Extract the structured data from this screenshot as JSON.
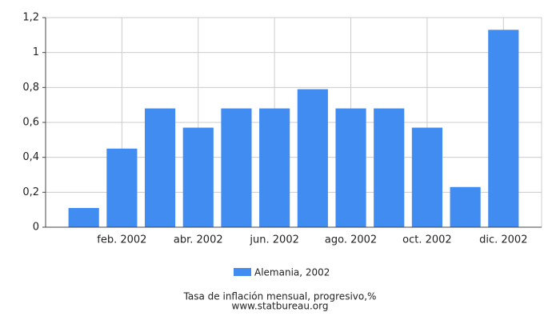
{
  "chart_data": {
    "type": "bar",
    "categories": [
      null,
      "feb. 2002",
      null,
      "abr. 2002",
      null,
      "jun. 2002",
      null,
      "ago. 2002",
      null,
      "oct. 2002",
      null,
      "dic. 2002"
    ],
    "series": [
      {
        "name": "Alemania, 2002",
        "color": "#418cf0",
        "values": [
          0.11,
          0.45,
          0.68,
          0.57,
          0.68,
          0.68,
          0.79,
          0.68,
          0.68,
          0.57,
          0.23,
          1.13
        ]
      }
    ],
    "ylim": [
      0,
      1.2
    ],
    "yticks": [
      0,
      {
        "value": 0.2,
        "label": "0,2"
      },
      {
        "value": 0.4,
        "label": "0,4"
      },
      {
        "value": 0.6,
        "label": "0,6"
      },
      {
        "value": 0.8,
        "label": "0,8"
      },
      1,
      {
        "value": 1.2,
        "label": "1,2"
      }
    ],
    "grid": true,
    "caption": "Tasa de inflación mensual, progresivo,%",
    "source": "www.statbureau.org"
  }
}
